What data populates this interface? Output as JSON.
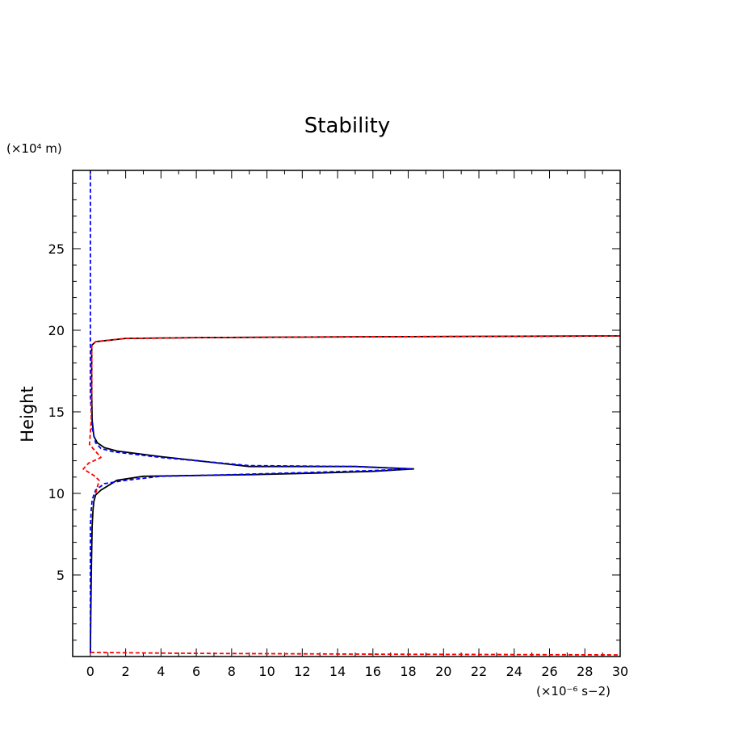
{
  "chart_data": {
    "type": "line",
    "title": "Stability",
    "ylabel": "Height",
    "yunit": "(×10⁴ m)",
    "xunit": "(×10⁻⁶ s−2)",
    "xlim": [
      -1,
      30
    ],
    "ylim": [
      0,
      29.8
    ],
    "xticks": [
      0,
      2,
      4,
      6,
      8,
      10,
      12,
      14,
      16,
      18,
      20,
      22,
      24,
      26,
      28,
      30
    ],
    "yticks": [
      5,
      10,
      15,
      20,
      25
    ],
    "grid": false,
    "series": [
      {
        "color": "#000000",
        "style": "solid",
        "x": [
          0,
          0.05,
          0.1,
          0.15,
          0.2,
          0.3,
          0.6,
          1.5,
          3,
          6,
          9,
          13,
          16,
          18.3,
          15,
          9,
          4,
          1.5,
          0.8,
          0.4,
          0.2,
          0.1,
          0.08,
          0.08,
          0.1,
          0.3,
          2,
          6,
          15,
          30
        ],
        "y": [
          0.2,
          5,
          8,
          9,
          9.5,
          9.9,
          10.2,
          10.8,
          11.05,
          11.1,
          11.15,
          11.25,
          11.35,
          11.5,
          11.65,
          11.65,
          12.25,
          12.6,
          12.8,
          13.1,
          13.5,
          14.5,
          16,
          19,
          19.1,
          19.3,
          19.5,
          19.55,
          19.6,
          19.65
        ]
      },
      {
        "color": "#0000ff",
        "style": "dashed",
        "x": [
          0,
          0,
          0.05,
          0.1,
          0.3,
          0.8,
          2,
          4,
          8,
          13,
          16,
          18.2,
          15,
          9,
          4,
          1.3,
          0.6,
          0.3,
          0.1,
          0,
          0,
          0
        ],
        "y": [
          0.2,
          8,
          9,
          9.6,
          10.2,
          10.6,
          10.8,
          11.05,
          11.15,
          11.3,
          11.4,
          11.5,
          11.65,
          11.7,
          12.2,
          12.55,
          12.75,
          13.1,
          14,
          16,
          20,
          29.8
        ]
      },
      {
        "color": "#ff0000",
        "style": "dashed",
        "x": [
          0.3,
          0.5,
          0.2,
          -0.4,
          -0.1,
          0.6,
          -0.05,
          0.05,
          0.08,
          0.08,
          0.1,
          0.3,
          2,
          6,
          15,
          30
        ],
        "y": [
          10,
          10.8,
          11.1,
          11.5,
          11.85,
          12.2,
          13,
          14.5,
          16.5,
          19,
          19.1,
          19.3,
          19.5,
          19.55,
          19.6,
          19.65
        ]
      },
      {
        "color": "#ff0000",
        "style": "dashed",
        "x": [
          0,
          5,
          15,
          30
        ],
        "y": [
          0.25,
          0.2,
          0.15,
          0.1
        ]
      }
    ]
  }
}
